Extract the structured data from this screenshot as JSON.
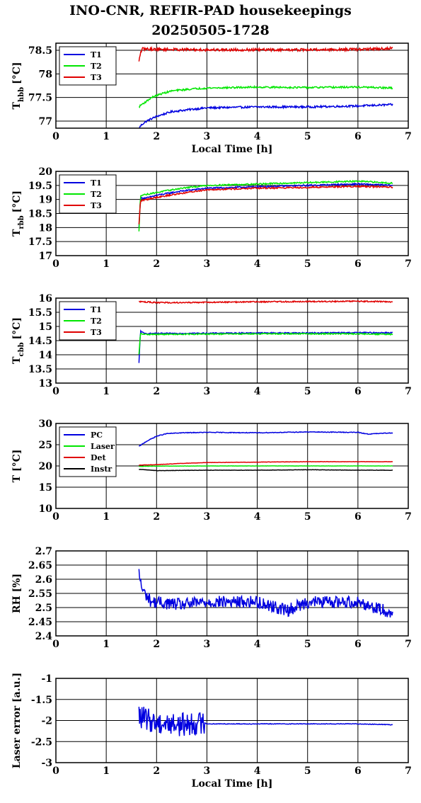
{
  "title_line1": "INO-CNR, REFIR-PAD housekeepings",
  "title_line2": "20250505-1728",
  "colors": {
    "blue": "#0000e0",
    "green": "#00e600",
    "red": "#e00000",
    "black": "#000000"
  },
  "chart_data": [
    {
      "type": "line",
      "ylabel": "T",
      "ylabel_sub": "hbb",
      "ylabel_unit": "[°C]",
      "xlabel": "Local Time [h]",
      "xlim": [
        0,
        7
      ],
      "xticks": [
        "0",
        "1",
        "2",
        "3",
        "4",
        "5",
        "6",
        "7"
      ],
      "ylim": [
        76.85,
        78.65
      ],
      "yticks": [
        77,
        77.5,
        78,
        78.5
      ],
      "ytick_labels": [
        "77",
        "77.5",
        "78",
        "78.5"
      ],
      "grid": true,
      "legend": "top-left",
      "series": [
        {
          "name": "T1",
          "color": "blue",
          "noise": 0.02,
          "spikes": 0,
          "points": [
            [
              1.65,
              76.85
            ],
            [
              1.7,
              76.92
            ],
            [
              1.8,
              77.0
            ],
            [
              2.0,
              77.1
            ],
            [
              2.3,
              77.2
            ],
            [
              2.7,
              77.25
            ],
            [
              3.0,
              77.28
            ],
            [
              4.0,
              77.3
            ],
            [
              5.0,
              77.3
            ],
            [
              6.0,
              77.32
            ],
            [
              6.7,
              77.35
            ]
          ]
        },
        {
          "name": "T2",
          "color": "green",
          "noise": 0.018,
          "spikes": 0,
          "points": [
            [
              1.65,
              77.3
            ],
            [
              1.7,
              77.35
            ],
            [
              1.8,
              77.42
            ],
            [
              1.9,
              77.5
            ],
            [
              2.1,
              77.58
            ],
            [
              2.3,
              77.64
            ],
            [
              2.7,
              77.68
            ],
            [
              3.0,
              77.7
            ],
            [
              4.0,
              77.72
            ],
            [
              5.0,
              77.71
            ],
            [
              6.0,
              77.72
            ],
            [
              6.7,
              77.7
            ]
          ]
        },
        {
          "name": "T3",
          "color": "red",
          "noise": 0.028,
          "spikes": 0,
          "points": [
            [
              1.65,
              78.25
            ],
            [
              1.68,
              78.45
            ],
            [
              1.72,
              78.53
            ],
            [
              2.0,
              78.52
            ],
            [
              3.0,
              78.51
            ],
            [
              4.0,
              78.51
            ],
            [
              5.0,
              78.51
            ],
            [
              6.0,
              78.52
            ],
            [
              6.7,
              78.54
            ]
          ]
        }
      ]
    },
    {
      "type": "line",
      "ylabel": "T",
      "ylabel_sub": "rbb",
      "ylabel_unit": "[°C]",
      "xlabel": "",
      "xlim": [
        0,
        7
      ],
      "xticks": [
        "0",
        "1",
        "2",
        "3",
        "4",
        "5",
        "6",
        "7"
      ],
      "ylim": [
        17,
        20
      ],
      "yticks": [
        17,
        17.5,
        18,
        18.5,
        19,
        19.5,
        20
      ],
      "ytick_labels": [
        "17",
        "17.5",
        "18",
        "18.5",
        "19",
        "19.5",
        "20"
      ],
      "grid": true,
      "legend": "top-left",
      "series": [
        {
          "name": "T1",
          "color": "blue",
          "noise": 0.025,
          "spikes": 0,
          "points": [
            [
              1.65,
              18.0
            ],
            [
              1.68,
              19.05
            ],
            [
              1.8,
              19.05
            ],
            [
              2.0,
              19.15
            ],
            [
              2.5,
              19.3
            ],
            [
              3.0,
              19.4
            ],
            [
              4.0,
              19.45
            ],
            [
              5.0,
              19.5
            ],
            [
              6.0,
              19.55
            ],
            [
              6.7,
              19.5
            ]
          ]
        },
        {
          "name": "T2",
          "color": "green",
          "noise": 0.025,
          "spikes": 0,
          "points": [
            [
              1.65,
              17.85
            ],
            [
              1.68,
              19.15
            ],
            [
              1.8,
              19.18
            ],
            [
              2.0,
              19.25
            ],
            [
              2.5,
              19.4
            ],
            [
              3.0,
              19.5
            ],
            [
              4.0,
              19.55
            ],
            [
              5.0,
              19.6
            ],
            [
              6.0,
              19.65
            ],
            [
              6.7,
              19.58
            ]
          ]
        },
        {
          "name": "T3",
          "color": "red",
          "noise": 0.028,
          "spikes": 0,
          "points": [
            [
              1.65,
              18.1
            ],
            [
              1.68,
              18.95
            ],
            [
              1.8,
              19.0
            ],
            [
              2.0,
              19.08
            ],
            [
              2.5,
              19.22
            ],
            [
              3.0,
              19.35
            ],
            [
              4.0,
              19.4
            ],
            [
              5.0,
              19.43
            ],
            [
              6.0,
              19.47
            ],
            [
              6.7,
              19.43
            ]
          ]
        }
      ]
    },
    {
      "type": "line",
      "ylabel": "T",
      "ylabel_sub": "cbb",
      "ylabel_unit": "[°C]",
      "xlabel": "",
      "xlim": [
        0,
        7
      ],
      "xticks": [
        "0",
        "1",
        "2",
        "3",
        "4",
        "5",
        "6",
        "7"
      ],
      "ylim": [
        13,
        16
      ],
      "yticks": [
        13,
        13.5,
        14,
        14.5,
        15,
        15.5,
        16
      ],
      "ytick_labels": [
        "13",
        "13.5",
        "14",
        "14.5",
        "15",
        "15.5",
        "16"
      ],
      "grid": true,
      "legend": "top-left",
      "series": [
        {
          "name": "T1",
          "color": "blue",
          "noise": 0.02,
          "spikes": 0,
          "points": [
            [
              1.65,
              13.7
            ],
            [
              1.68,
              14.85
            ],
            [
              1.75,
              14.75
            ],
            [
              2.0,
              14.75
            ],
            [
              3.0,
              14.76
            ],
            [
              4.0,
              14.77
            ],
            [
              5.0,
              14.77
            ],
            [
              6.0,
              14.78
            ],
            [
              6.7,
              14.78
            ]
          ]
        },
        {
          "name": "T2",
          "color": "green",
          "noise": 0.02,
          "spikes": 0,
          "points": [
            [
              1.65,
              14.0
            ],
            [
              1.68,
              14.75
            ],
            [
              1.75,
              14.72
            ],
            [
              2.0,
              14.72
            ],
            [
              3.0,
              14.73
            ],
            [
              4.0,
              14.74
            ],
            [
              5.0,
              14.74
            ],
            [
              6.0,
              14.74
            ],
            [
              6.7,
              14.72
            ]
          ]
        },
        {
          "name": "T3",
          "color": "red",
          "noise": 0.022,
          "spikes": 0,
          "points": [
            [
              1.65,
              15.88
            ],
            [
              2.0,
              15.84
            ],
            [
              3.0,
              15.85
            ],
            [
              4.0,
              15.87
            ],
            [
              5.0,
              15.88
            ],
            [
              6.0,
              15.89
            ],
            [
              6.7,
              15.87
            ]
          ]
        }
      ]
    },
    {
      "type": "line",
      "ylabel": "T [°C]",
      "ylabel_sub": "",
      "ylabel_unit": "",
      "xlabel": "",
      "xlim": [
        0,
        7
      ],
      "xticks": [
        "0",
        "1",
        "2",
        "3",
        "4",
        "5",
        "6",
        "7"
      ],
      "ylim": [
        10,
        30
      ],
      "yticks": [
        10,
        15,
        20,
        25,
        30
      ],
      "ytick_labels": [
        "10",
        "15",
        "20",
        "25",
        "30"
      ],
      "grid": true,
      "legend": "top-left",
      "series": [
        {
          "name": "PC",
          "color": "blue",
          "noise": 0.08,
          "spikes": 0,
          "points": [
            [
              1.65,
              24.6
            ],
            [
              1.8,
              25.8
            ],
            [
              2.0,
              27.0
            ],
            [
              2.2,
              27.6
            ],
            [
              2.5,
              27.8
            ],
            [
              3.0,
              27.9
            ],
            [
              4.0,
              27.8
            ],
            [
              5.0,
              28.0
            ],
            [
              6.0,
              27.9
            ],
            [
              6.2,
              27.5
            ],
            [
              6.7,
              27.8
            ]
          ]
        },
        {
          "name": "Laser",
          "color": "green",
          "noise": 0.03,
          "spikes": 0,
          "points": [
            [
              1.65,
              19.9
            ],
            [
              2.0,
              19.95
            ],
            [
              3.0,
              20.0
            ],
            [
              4.0,
              20.0
            ],
            [
              5.0,
              20.0
            ],
            [
              6.0,
              20.0
            ],
            [
              6.7,
              20.0
            ]
          ]
        },
        {
          "name": "Det",
          "color": "red",
          "noise": 0.04,
          "spikes": 0,
          "points": [
            [
              1.65,
              20.2
            ],
            [
              2.0,
              20.3
            ],
            [
              2.5,
              20.6
            ],
            [
              3.0,
              20.8
            ],
            [
              4.0,
              20.9
            ],
            [
              5.0,
              21.0
            ],
            [
              6.0,
              21.0
            ],
            [
              6.7,
              21.0
            ]
          ]
        },
        {
          "name": "Instr",
          "color": "black",
          "noise": 0.04,
          "spikes": 0,
          "points": [
            [
              1.65,
              19.2
            ],
            [
              2.0,
              18.9
            ],
            [
              3.0,
              19.0
            ],
            [
              4.0,
              19.0
            ],
            [
              5.0,
              19.1
            ],
            [
              6.0,
              19.0
            ],
            [
              6.7,
              19.0
            ]
          ]
        }
      ]
    },
    {
      "type": "line",
      "ylabel": "RH [%]",
      "ylabel_sub": "",
      "ylabel_unit": "",
      "xlabel": "",
      "xlim": [
        0,
        7
      ],
      "xticks": [
        "0",
        "1",
        "2",
        "3",
        "4",
        "5",
        "6",
        "7"
      ],
      "ylim": [
        2.4,
        2.7
      ],
      "yticks": [
        2.4,
        2.45,
        2.5,
        2.55,
        2.6,
        2.65,
        2.7
      ],
      "ytick_labels": [
        "2.4",
        "2.45",
        "2.5",
        "2.55",
        "2.6",
        "2.65",
        "2.7"
      ],
      "grid": true,
      "legend": "none",
      "series": [
        {
          "name": "",
          "color": "blue",
          "noise": 0.022,
          "spikes": 0,
          "points": [
            [
              1.65,
              2.62
            ],
            [
              1.72,
              2.56
            ],
            [
              1.9,
              2.52
            ],
            [
              2.5,
              2.51
            ],
            [
              3.0,
              2.52
            ],
            [
              4.0,
              2.52
            ],
            [
              4.6,
              2.49
            ],
            [
              5.0,
              2.52
            ],
            [
              6.0,
              2.52
            ],
            [
              6.7,
              2.48
            ]
          ]
        }
      ]
    },
    {
      "type": "line",
      "ylabel": "Laser error [a.u.]",
      "ylabel_sub": "",
      "ylabel_unit": "",
      "xlabel": "Local Time [h]",
      "xlim": [
        0,
        7
      ],
      "xticks": [
        "0",
        "1",
        "2",
        "3",
        "4",
        "5",
        "6",
        "7"
      ],
      "ylim": [
        -3,
        -1
      ],
      "yticks": [
        -3,
        -2.5,
        -2,
        -1.5,
        -1
      ],
      "ytick_labels": [
        "-3",
        "-2.5",
        "-2",
        "-1.5",
        "-1"
      ],
      "grid": true,
      "legend": "none",
      "series": [
        {
          "name": "",
          "color": "blue",
          "noise": 0.28,
          "noise_end": 2.95,
          "noise_after": 0.008,
          "spikes": 0,
          "points": [
            [
              1.65,
              -1.9
            ],
            [
              1.75,
              -1.95
            ],
            [
              2.0,
              -2.05
            ],
            [
              2.5,
              -2.1
            ],
            [
              2.95,
              -2.05
            ],
            [
              3.0,
              -2.08
            ],
            [
              4.0,
              -2.08
            ],
            [
              5.0,
              -2.08
            ],
            [
              6.0,
              -2.08
            ],
            [
              6.7,
              -2.1
            ]
          ]
        }
      ]
    }
  ]
}
